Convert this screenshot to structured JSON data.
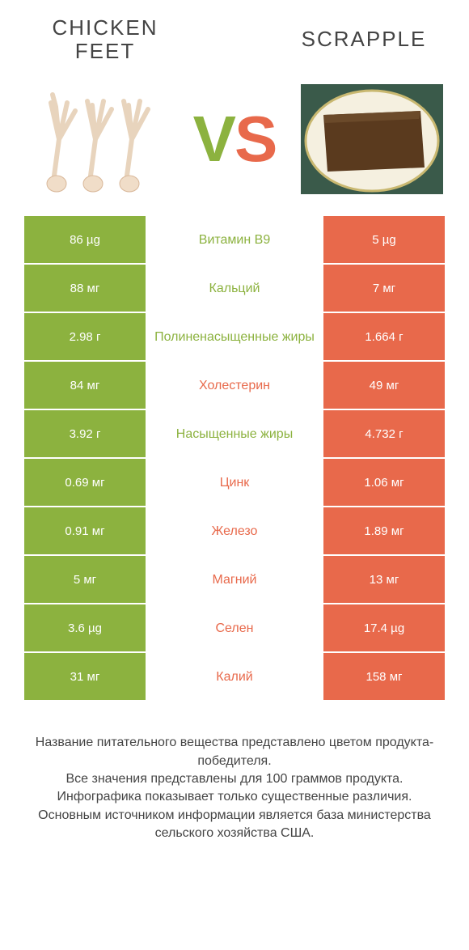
{
  "colors": {
    "left_bg": "#8cb23f",
    "right_bg": "#e8694b",
    "left_text": "#8cb23f",
    "right_text": "#e8694b",
    "body_text": "#444444",
    "white": "#ffffff"
  },
  "header": {
    "left_title": "CHICKEN FEET",
    "right_title": "SCRAPPLE",
    "vs_v": "V",
    "vs_s": "S"
  },
  "rows": [
    {
      "left": "86 µg",
      "mid": "Витамин B9",
      "right": "5 µg",
      "winner": "left"
    },
    {
      "left": "88 мг",
      "mid": "Кальций",
      "right": "7 мг",
      "winner": "left"
    },
    {
      "left": "2.98 г",
      "mid": "Полиненасыщенные жиры",
      "right": "1.664 г",
      "winner": "left"
    },
    {
      "left": "84 мг",
      "mid": "Холестерин",
      "right": "49 мг",
      "winner": "right"
    },
    {
      "left": "3.92 г",
      "mid": "Насыщенные жиры",
      "right": "4.732 г",
      "winner": "left"
    },
    {
      "left": "0.69 мг",
      "mid": "Цинк",
      "right": "1.06 мг",
      "winner": "right"
    },
    {
      "left": "0.91 мг",
      "mid": "Железо",
      "right": "1.89 мг",
      "winner": "right"
    },
    {
      "left": "5 мг",
      "mid": "Магний",
      "right": "13 мг",
      "winner": "right"
    },
    {
      "left": "3.6 µg",
      "mid": "Селен",
      "right": "17.4 µg",
      "winner": "right"
    },
    {
      "left": "31 мг",
      "mid": "Калий",
      "right": "158 мг",
      "winner": "right"
    }
  ],
  "notes": {
    "l1": "Название питательного вещества представлено цветом продукта-победителя.",
    "l2": "Все значения представлены для 100 граммов продукта.",
    "l3": "Инфографика показывает только существенные различия.",
    "l4": "Основным источником информации является база министерства сельского хозяйства США."
  }
}
